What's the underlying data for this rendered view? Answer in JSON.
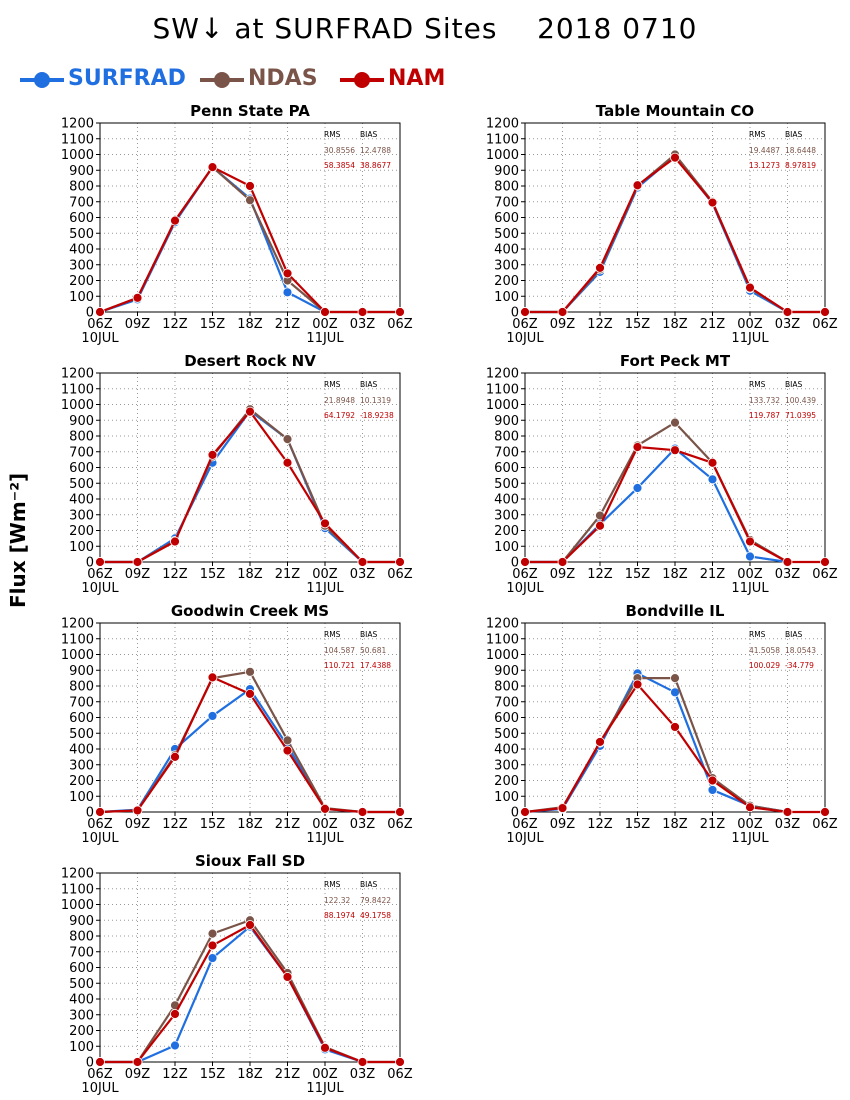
{
  "title": "SW↓ at SURFRAD Sites    2018 0710",
  "ylabel": "Flux [Wm⁻²]",
  "legend": [
    {
      "name": "SURFRAD",
      "color": "#1f6fe0"
    },
    {
      "name": "NDAS",
      "color": "#7a5448"
    },
    {
      "name": "NAM",
      "color": "#c00000"
    }
  ],
  "chart_data": [
    {
      "type": "line",
      "title": "Penn State PA",
      "categories": [
        "06Z",
        "09Z",
        "12Z",
        "15Z",
        "18Z",
        "21Z",
        "00Z",
        "03Z",
        "06Z"
      ],
      "date_labels": [
        "10JUL",
        "11JUL"
      ],
      "ylim": [
        0,
        1200
      ],
      "yticks": [
        0,
        100,
        200,
        300,
        400,
        500,
        600,
        700,
        800,
        900,
        1000,
        1100,
        1200
      ],
      "grid": true,
      "stats": {
        "header": [
          "RMS",
          "BIAS"
        ],
        "ndas": [
          "30.8556",
          "12.4788"
        ],
        "nam": [
          "58.3854",
          "38.8677"
        ]
      },
      "series": [
        {
          "name": "SURFRAD",
          "values": [
            0,
            80,
            570,
            920,
            720,
            125,
            0,
            null,
            null
          ]
        },
        {
          "name": "NDAS",
          "values": [
            0,
            90,
            580,
            920,
            710,
            200,
            0,
            0,
            0
          ]
        },
        {
          "name": "NAM",
          "values": [
            0,
            90,
            580,
            920,
            800,
            245,
            0,
            0,
            0
          ]
        }
      ]
    },
    {
      "type": "line",
      "title": "Table Mountain CO",
      "categories": [
        "06Z",
        "09Z",
        "12Z",
        "15Z",
        "18Z",
        "21Z",
        "00Z",
        "03Z",
        "06Z"
      ],
      "date_labels": [
        "10JUL",
        "11JUL"
      ],
      "ylim": [
        0,
        1200
      ],
      "yticks": [
        0,
        100,
        200,
        300,
        400,
        500,
        600,
        700,
        800,
        900,
        1000,
        1100,
        1200
      ],
      "grid": true,
      "stats": {
        "header": [
          "RMS",
          "BIAS"
        ],
        "ndas": [
          "19.4487",
          "18.6448"
        ],
        "nam": [
          "13.1273",
          "8.97819"
        ]
      },
      "series": [
        {
          "name": "SURFRAD",
          "values": [
            0,
            0,
            255,
            790,
            990,
            690,
            135,
            0,
            null
          ]
        },
        {
          "name": "NDAS",
          "values": [
            0,
            0,
            270,
            800,
            1000,
            700,
            150,
            0,
            0
          ]
        },
        {
          "name": "NAM",
          "values": [
            0,
            0,
            280,
            805,
            980,
            695,
            155,
            0,
            0
          ]
        }
      ]
    },
    {
      "type": "line",
      "title": "Desert Rock NV",
      "categories": [
        "06Z",
        "09Z",
        "12Z",
        "15Z",
        "18Z",
        "21Z",
        "00Z",
        "03Z",
        "06Z"
      ],
      "date_labels": [
        "10JUL",
        "11JUL"
      ],
      "ylim": [
        0,
        1200
      ],
      "yticks": [
        0,
        100,
        200,
        300,
        400,
        500,
        600,
        700,
        800,
        900,
        1000,
        1100,
        1200
      ],
      "grid": true,
      "stats": {
        "header": [
          "RMS",
          "BIAS"
        ],
        "ndas": [
          "21.8948",
          "10.1319"
        ],
        "nam": [
          "64.1792",
          "-18.9238"
        ]
      },
      "series": [
        {
          "name": "SURFRAD",
          "values": [
            0,
            0,
            150,
            630,
            960,
            780,
            215,
            0,
            null
          ]
        },
        {
          "name": "NDAS",
          "values": [
            0,
            0,
            135,
            670,
            970,
            780,
            230,
            0,
            0
          ]
        },
        {
          "name": "NAM",
          "values": [
            0,
            0,
            130,
            680,
            955,
            630,
            245,
            0,
            0
          ]
        }
      ]
    },
    {
      "type": "line",
      "title": "Fort Peck MT",
      "categories": [
        "06Z",
        "09Z",
        "12Z",
        "15Z",
        "18Z",
        "21Z",
        "00Z",
        "03Z",
        "06Z"
      ],
      "date_labels": [
        "10JUL",
        "11JUL"
      ],
      "ylim": [
        0,
        1200
      ],
      "yticks": [
        0,
        100,
        200,
        300,
        400,
        500,
        600,
        700,
        800,
        900,
        1000,
        1100,
        1200
      ],
      "grid": true,
      "stats": {
        "header": [
          "RMS",
          "BIAS"
        ],
        "ndas": [
          "133.732",
          "100.439"
        ],
        "nam": [
          "119.787",
          "71.0395"
        ]
      },
      "series": [
        {
          "name": "SURFRAD",
          "values": [
            0,
            0,
            240,
            470,
            720,
            525,
            35,
            0,
            null
          ]
        },
        {
          "name": "NDAS",
          "values": [
            0,
            0,
            295,
            740,
            885,
            630,
            140,
            0,
            null
          ]
        },
        {
          "name": "NAM",
          "values": [
            0,
            0,
            230,
            730,
            710,
            630,
            130,
            0,
            0
          ]
        }
      ]
    },
    {
      "type": "line",
      "title": "Goodwin Creek MS",
      "categories": [
        "06Z",
        "09Z",
        "12Z",
        "15Z",
        "18Z",
        "21Z",
        "00Z",
        "03Z",
        "06Z"
      ],
      "date_labels": [
        "10JUL",
        "11JUL"
      ],
      "ylim": [
        0,
        1200
      ],
      "yticks": [
        0,
        100,
        200,
        300,
        400,
        500,
        600,
        700,
        800,
        900,
        1000,
        1100,
        1200
      ],
      "grid": true,
      "stats": {
        "header": [
          "RMS",
          "BIAS"
        ],
        "ndas": [
          "104.587",
          "50.681"
        ],
        "nam": [
          "110.721",
          "17.4388"
        ]
      },
      "series": [
        {
          "name": "SURFRAD",
          "values": [
            0,
            15,
            400,
            610,
            780,
            420,
            20,
            0,
            null
          ]
        },
        {
          "name": "NDAS",
          "values": [
            0,
            10,
            360,
            850,
            890,
            455,
            25,
            0,
            0
          ]
        },
        {
          "name": "NAM",
          "values": [
            0,
            10,
            350,
            855,
            750,
            390,
            20,
            0,
            0
          ]
        }
      ]
    },
    {
      "type": "line",
      "title": "Bondville IL",
      "categories": [
        "06Z",
        "09Z",
        "12Z",
        "15Z",
        "18Z",
        "21Z",
        "00Z",
        "03Z",
        "06Z"
      ],
      "date_labels": [
        "10JUL",
        "11JUL"
      ],
      "ylim": [
        0,
        1200
      ],
      "yticks": [
        0,
        100,
        200,
        300,
        400,
        500,
        600,
        700,
        800,
        900,
        1000,
        1100,
        1200
      ],
      "grid": true,
      "stats": {
        "header": [
          "RMS",
          "BIAS"
        ],
        "ndas": [
          "41.5058",
          "18.0543"
        ],
        "nam": [
          "100.029",
          "-34.779"
        ]
      },
      "series": [
        {
          "name": "SURFRAD",
          "values": [
            0,
            20,
            420,
            880,
            760,
            140,
            40,
            0,
            null
          ]
        },
        {
          "name": "NDAS",
          "values": [
            0,
            30,
            440,
            850,
            850,
            215,
            40,
            0,
            null
          ]
        },
        {
          "name": "NAM",
          "values": [
            0,
            25,
            445,
            810,
            540,
            200,
            30,
            0,
            0
          ]
        }
      ]
    },
    {
      "type": "line",
      "title": "Sioux Fall SD",
      "categories": [
        "06Z",
        "09Z",
        "12Z",
        "15Z",
        "18Z",
        "21Z",
        "00Z",
        "03Z",
        "06Z"
      ],
      "date_labels": [
        "10JUL",
        "11JUL"
      ],
      "ylim": [
        0,
        1200
      ],
      "yticks": [
        0,
        100,
        200,
        300,
        400,
        500,
        600,
        700,
        800,
        900,
        1000,
        1100,
        1200
      ],
      "grid": true,
      "stats": {
        "header": [
          "RMS",
          "BIAS"
        ],
        "ndas": [
          "122.32",
          "79.8422"
        ],
        "nam": [
          "88.1974",
          "49.1758"
        ]
      },
      "series": [
        {
          "name": "SURFRAD",
          "values": [
            0,
            0,
            105,
            660,
            860,
            540,
            80,
            0,
            null
          ]
        },
        {
          "name": "NDAS",
          "values": [
            0,
            0,
            360,
            815,
            900,
            565,
            95,
            0,
            0
          ]
        },
        {
          "name": "NAM",
          "values": [
            0,
            0,
            305,
            740,
            870,
            540,
            90,
            0,
            0
          ]
        }
      ]
    }
  ]
}
